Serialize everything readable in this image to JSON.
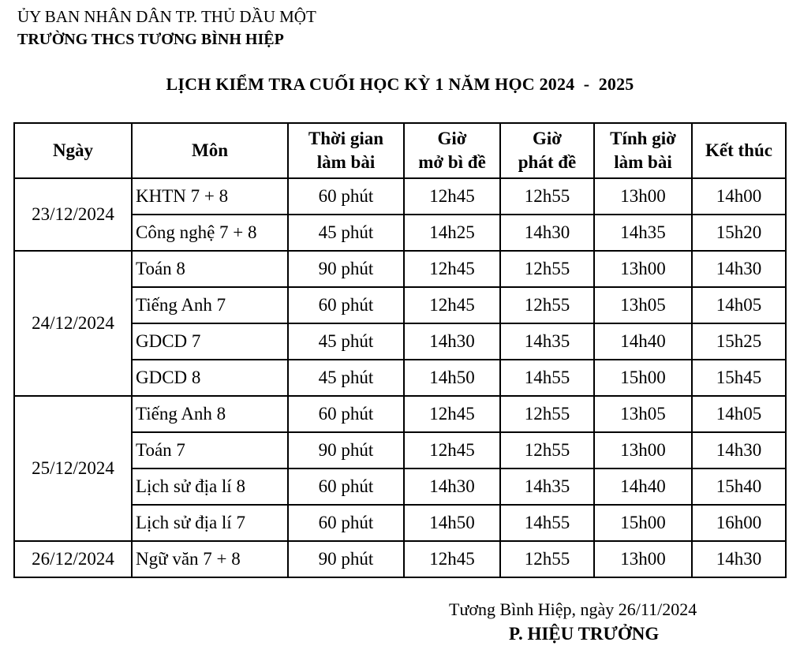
{
  "header": {
    "committee": "ỦY BAN NHÂN DÂN TP. THỦ DẦU MỘT",
    "school": "TRƯỜNG THCS TƯƠNG BÌNH HIỆP"
  },
  "title": "LỊCH KIỂM TRA CUỐI HỌC KỲ 1 NĂM HỌC 2024  -  2025",
  "table": {
    "headers": {
      "date": "Ngày",
      "subject": "Môn",
      "duration_l1": "Thời gian",
      "duration_l2": "làm bài",
      "open_l1": "Giờ",
      "open_l2": "mở bì đề",
      "distribute_l1": "Giờ",
      "distribute_l2": "phát đề",
      "start_l1": "Tính giờ",
      "start_l2": "làm bài",
      "end": "Kết thúc"
    },
    "dates": [
      "23/12/2024",
      "24/12/2024",
      "25/12/2024",
      "26/12/2024"
    ],
    "rows": [
      {
        "subject": "KHTN 7 + 8",
        "duration": "60 phút",
        "open": "12h45",
        "distribute": "12h55",
        "start": "13h00",
        "end": "14h00"
      },
      {
        "subject": "Công nghệ 7 + 8",
        "duration": "45 phút",
        "open": "14h25",
        "distribute": "14h30",
        "start": "14h35",
        "end": "15h20"
      },
      {
        "subject": "Toán 8",
        "duration": "90 phút",
        "open": "12h45",
        "distribute": "12h55",
        "start": "13h00",
        "end": "14h30"
      },
      {
        "subject": "Tiếng Anh 7",
        "duration": "60 phút",
        "open": "12h45",
        "distribute": "12h55",
        "start": "13h05",
        "end": "14h05"
      },
      {
        "subject": "GDCD 7",
        "duration": "45 phút",
        "open": "14h30",
        "distribute": "14h35",
        "start": "14h40",
        "end": "15h25"
      },
      {
        "subject": "GDCD 8",
        "duration": "45 phút",
        "open": "14h50",
        "distribute": "14h55",
        "start": "15h00",
        "end": "15h45"
      },
      {
        "subject": "Tiếng Anh 8",
        "duration": "60 phút",
        "open": "12h45",
        "distribute": "12h55",
        "start": "13h05",
        "end": "14h05"
      },
      {
        "subject": "Toán 7",
        "duration": "90 phút",
        "open": "12h45",
        "distribute": "12h55",
        "start": "13h00",
        "end": "14h30"
      },
      {
        "subject": "Lịch sử địa lí 8",
        "duration": "60 phút",
        "open": "14h30",
        "distribute": "14h35",
        "start": "14h40",
        "end": "15h40"
      },
      {
        "subject": "Lịch sử địa lí 7",
        "duration": "60 phút",
        "open": "14h50",
        "distribute": "14h55",
        "start": "15h00",
        "end": "16h00"
      },
      {
        "subject": "Ngữ văn 7 + 8",
        "duration": "90 phút",
        "open": "12h45",
        "distribute": "12h55",
        "start": "13h00",
        "end": "14h30"
      }
    ]
  },
  "footer": {
    "place_date": "Tương Bình Hiệp, ngày 26/11/2024",
    "signer": "P. HIỆU TRƯỞNG"
  }
}
